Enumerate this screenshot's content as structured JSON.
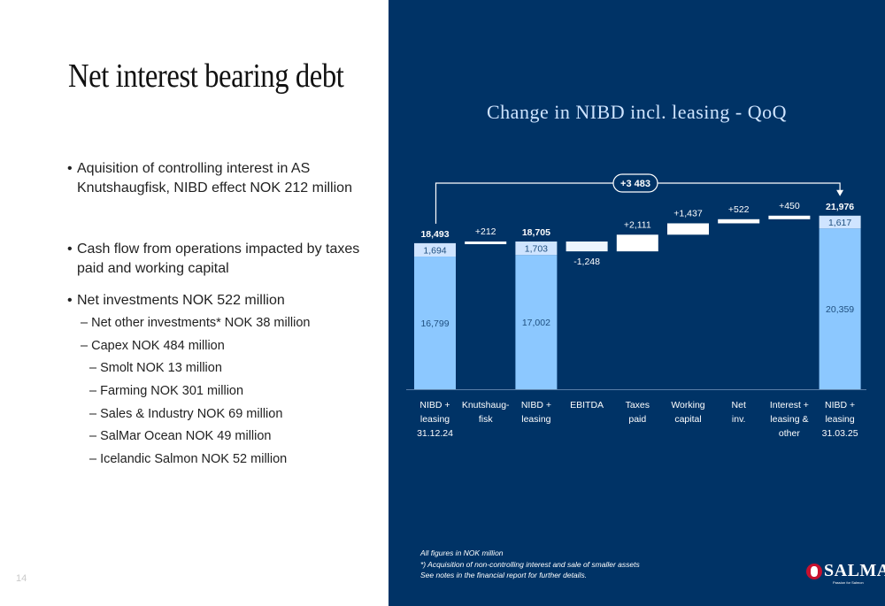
{
  "page": {
    "title": "Net interest bearing debt",
    "page_number": "14"
  },
  "bullets": [
    "Aquisition of controlling interest in AS Knutshaugfisk, NIBD effect NOK 212 million",
    "Cash flow from operations impacted by taxes paid and working capital",
    "Net investments NOK 522 million"
  ],
  "sub_bullets": [
    "– Net other investments* NOK 38 million",
    "– Capex NOK 484 million",
    "– Smolt NOK 13 million",
    "– Farming NOK 301 million",
    "– Sales & Industry NOK 69 million",
    "– SalMar Ocean NOK 49 million",
    "– Icelandic Salmon NOK 52 million"
  ],
  "footnotes": [
    "All figures in NOK million",
    "*) Acquisition of non-controlling interest and sale of smaller assets",
    "See notes in the financial report for further details."
  ],
  "logo": {
    "text": "SALMAR",
    "tagline": "Passion for Salmon"
  },
  "colors": {
    "panel": "#003366",
    "bar_main": "#8cc8ff",
    "bar_top": "#cfe4ff",
    "step": "#ffffff",
    "text_light": "#cfe4ff"
  },
  "chart_data": {
    "type": "bar",
    "subtype": "waterfall",
    "title": "Change in NIBD incl. leasing - QoQ",
    "categories": [
      "NIBD + leasing 31.12.24",
      "Knutshaug-fisk",
      "NIBD + leasing",
      "EBITDA",
      "Taxes paid",
      "Working capital",
      "Net inv.",
      "Interest + leasing & other",
      "NIBD + leasing 31.03.25"
    ],
    "category_lines": [
      [
        "NIBD +",
        "leasing",
        "31.12.24"
      ],
      [
        "Knutshaug-",
        "fisk"
      ],
      [
        "NIBD +",
        "leasing"
      ],
      [
        "EBITDA"
      ],
      [
        "Taxes",
        "paid"
      ],
      [
        "Working",
        "capital"
      ],
      [
        "Net",
        "inv."
      ],
      [
        "Interest +",
        "leasing &",
        "other"
      ],
      [
        "NIBD +",
        "leasing",
        "31.03.25"
      ]
    ],
    "bars": [
      {
        "kind": "total",
        "start": 0,
        "end": 18493,
        "total_label": "18,493",
        "segments": [
          {
            "name": "NIBD",
            "value": 16799,
            "label": "16,799"
          },
          {
            "name": "Leasing",
            "value": 1694,
            "label": "1,694"
          }
        ]
      },
      {
        "kind": "delta",
        "start": 18493,
        "end": 18705,
        "label": "+212"
      },
      {
        "kind": "total",
        "start": 0,
        "end": 18705,
        "total_label": "18,705",
        "segments": [
          {
            "name": "NIBD",
            "value": 17002,
            "label": "17,002"
          },
          {
            "name": "Leasing",
            "value": 1703,
            "label": "1,703"
          }
        ]
      },
      {
        "kind": "delta",
        "start": 18705,
        "end": 17457,
        "label": "-1,248"
      },
      {
        "kind": "delta",
        "start": 17457,
        "end": 19568,
        "label": "+2,111"
      },
      {
        "kind": "delta",
        "start": 19568,
        "end": 21005,
        "label": "+1,437"
      },
      {
        "kind": "delta",
        "start": 21005,
        "end": 21527,
        "label": "+522"
      },
      {
        "kind": "delta",
        "start": 21527,
        "end": 21977,
        "label": "+450"
      },
      {
        "kind": "total",
        "start": 0,
        "end": 21976,
        "total_label": "21,976",
        "segments": [
          {
            "name": "NIBD",
            "value": 20359,
            "label": "20,359"
          },
          {
            "name": "Leasing",
            "value": 1617,
            "label": "1,617"
          }
        ]
      }
    ],
    "change_label": "+3 483",
    "ylim": [
      0,
      22400
    ]
  }
}
